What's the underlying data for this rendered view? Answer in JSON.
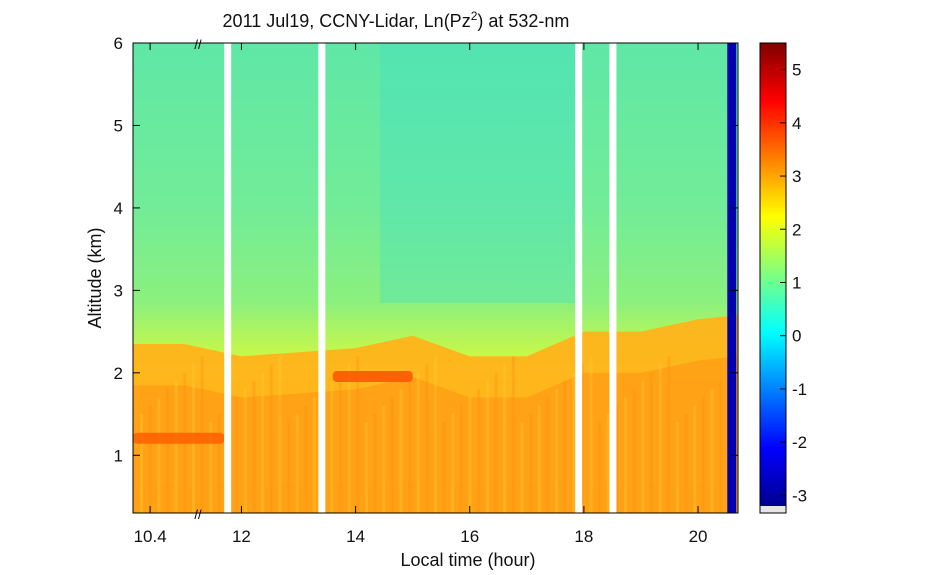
{
  "chart_data": {
    "type": "heatmap",
    "title": "2011 Jul19, CCNY-Lidar, Ln(Pz",
    "title_superscript": "2",
    "title_suffix": ") at 532-nm",
    "xlabel": "Local time (hour)",
    "ylabel": "Altitude (km)",
    "xlim": [
      10.1,
      20.7
    ],
    "ylim": [
      0.3,
      6
    ],
    "x_ticks": [
      {
        "value": 10.4,
        "label": "10.4"
      },
      {
        "value": 12,
        "label": "12"
      },
      {
        "value": 14,
        "label": "14"
      },
      {
        "value": 16,
        "label": "16"
      },
      {
        "value": 18,
        "label": "18"
      },
      {
        "value": 20,
        "label": "20"
      }
    ],
    "y_ticks": [
      {
        "value": 1,
        "label": "1"
      },
      {
        "value": 2,
        "label": "2"
      },
      {
        "value": 3,
        "label": "3"
      },
      {
        "value": 4,
        "label": "4"
      },
      {
        "value": 5,
        "label": "5"
      },
      {
        "value": 6,
        "label": "6"
      }
    ],
    "axis_break": {
      "at": 11.75,
      "symbol": "//"
    },
    "data_gaps": [
      11.75,
      13.4,
      17.9,
      18.5
    ],
    "colorbar": {
      "range": [
        -3.2,
        5.5
      ],
      "ticks": [
        {
          "value": 5,
          "label": "5"
        },
        {
          "value": 4,
          "label": "4"
        },
        {
          "value": 3,
          "label": "3"
        },
        {
          "value": 2,
          "label": "2"
        },
        {
          "value": 1,
          "label": "1"
        },
        {
          "value": 0,
          "label": "0"
        },
        {
          "value": -1,
          "label": "-1"
        },
        {
          "value": -2,
          "label": "-2"
        },
        {
          "value": -3,
          "label": "-3"
        }
      ],
      "colormap": "jet"
    },
    "boundary_layer_top_km": [
      [
        10.1,
        2.35
      ],
      [
        11.0,
        2.35
      ],
      [
        12.0,
        2.2
      ],
      [
        13.0,
        2.25
      ],
      [
        14.0,
        2.3
      ],
      [
        15.0,
        2.45
      ],
      [
        16.0,
        2.2
      ],
      [
        17.0,
        2.2
      ],
      [
        18.0,
        2.5
      ],
      [
        19.0,
        2.5
      ],
      [
        20.0,
        2.65
      ],
      [
        20.7,
        2.7
      ]
    ],
    "features": [
      {
        "name": "aerosol layer",
        "x": [
          10.1,
          11.7
        ],
        "y": 1.2,
        "value": 3.6
      },
      {
        "name": "aerosol layer",
        "x": [
          13.6,
          15.0
        ],
        "y": 1.95,
        "value": 3.7
      },
      {
        "name": "cloud",
        "x": 20.6,
        "y": [
          0.3,
          6
        ],
        "value": -2.8
      }
    ]
  }
}
